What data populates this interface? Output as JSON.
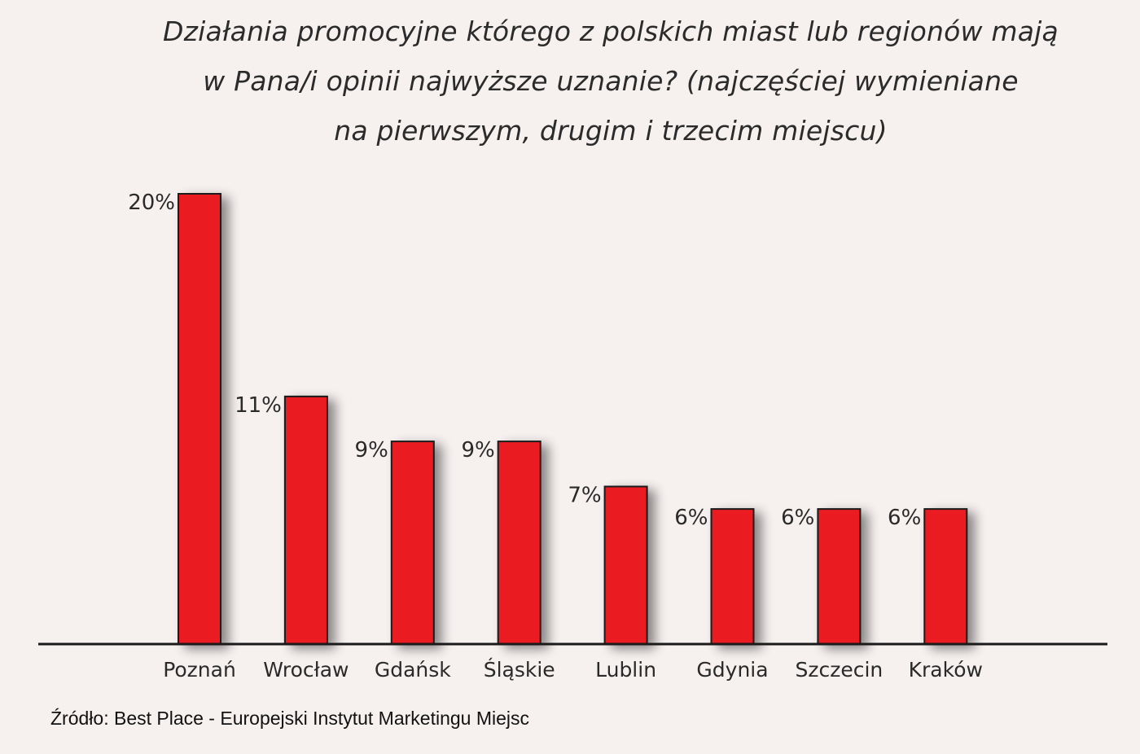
{
  "chart_data": {
    "type": "bar",
    "title_lines": [
      "Działania promocyjne którego z polskich miast lub regionów mają",
      "w Pana/i opinii najwyższe uznanie? (najczęściej wymieniane",
      "na pierwszym, drugim i trzecim miejscu)"
    ],
    "categories": [
      "Poznań",
      "Wrocław",
      "Gdańsk",
      "Śląskie",
      "Lublin",
      "Gdynia",
      "Szczecin",
      "Kraków"
    ],
    "values": [
      20,
      11,
      9,
      9,
      7,
      6,
      6,
      6
    ],
    "value_labels": [
      "20%",
      "11%",
      "9%",
      "9%",
      "7%",
      "6%",
      "6%",
      "6%"
    ],
    "unit": "%",
    "ylim": [
      0,
      20
    ],
    "grid": false,
    "legend": "none",
    "colors": {
      "bar": "#ea1c24",
      "bar_outline": "#1a1a1a",
      "axis": "#1a1a1a"
    }
  },
  "source_text": "Źródło: Best Place - Europejski Instytut Marketingu Miejsc"
}
